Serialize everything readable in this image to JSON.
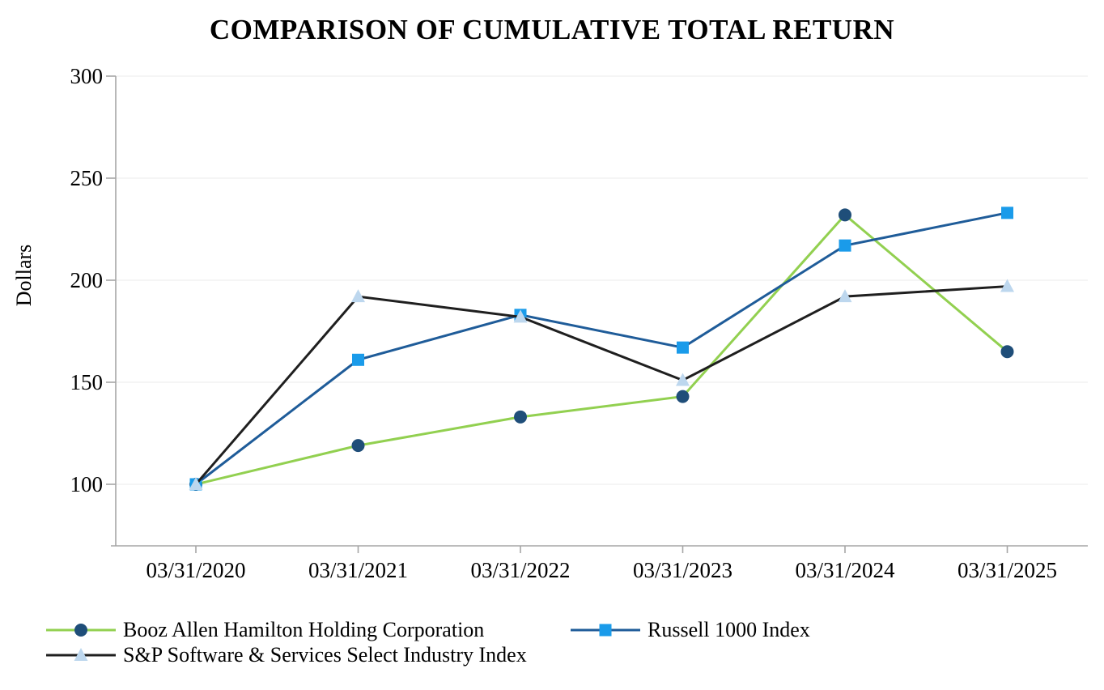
{
  "title": "COMPARISON OF CUMULATIVE TOTAL RETURN",
  "chart_data": {
    "type": "line",
    "title": "COMPARISON OF CUMULATIVE TOTAL RETURN",
    "xlabel": "",
    "ylabel": "Dollars",
    "categories": [
      "03/31/2020",
      "03/31/2021",
      "03/31/2022",
      "03/31/2023",
      "03/31/2024",
      "03/31/2025"
    ],
    "series": [
      {
        "name": "Booz Allen Hamilton Holding Corporation",
        "values": [
          100,
          119,
          133,
          143,
          232,
          165
        ],
        "line_color": "#92D050",
        "marker": "circle",
        "marker_color": "#1F4E79"
      },
      {
        "name": "Russell 1000 Index",
        "values": [
          100,
          161,
          183,
          167,
          217,
          233
        ],
        "line_color": "#1F5C99",
        "marker": "square",
        "marker_color": "#1A9BEA"
      },
      {
        "name": "S&P Software & Services Select Industry Index",
        "values": [
          100,
          192,
          182,
          151,
          192,
          197
        ],
        "line_color": "#1F1F1F",
        "marker": "triangle",
        "marker_color": "#BDD7EE"
      }
    ],
    "y_ticks": [
      100,
      150,
      200,
      250,
      300
    ],
    "ylim": [
      70,
      300
    ],
    "grid": true,
    "legend_position": "bottom"
  },
  "colors": {
    "grid": "#F2F2F2",
    "axis": "#A6A6A6",
    "text": "#000000",
    "background": "#FFFFFF"
  }
}
